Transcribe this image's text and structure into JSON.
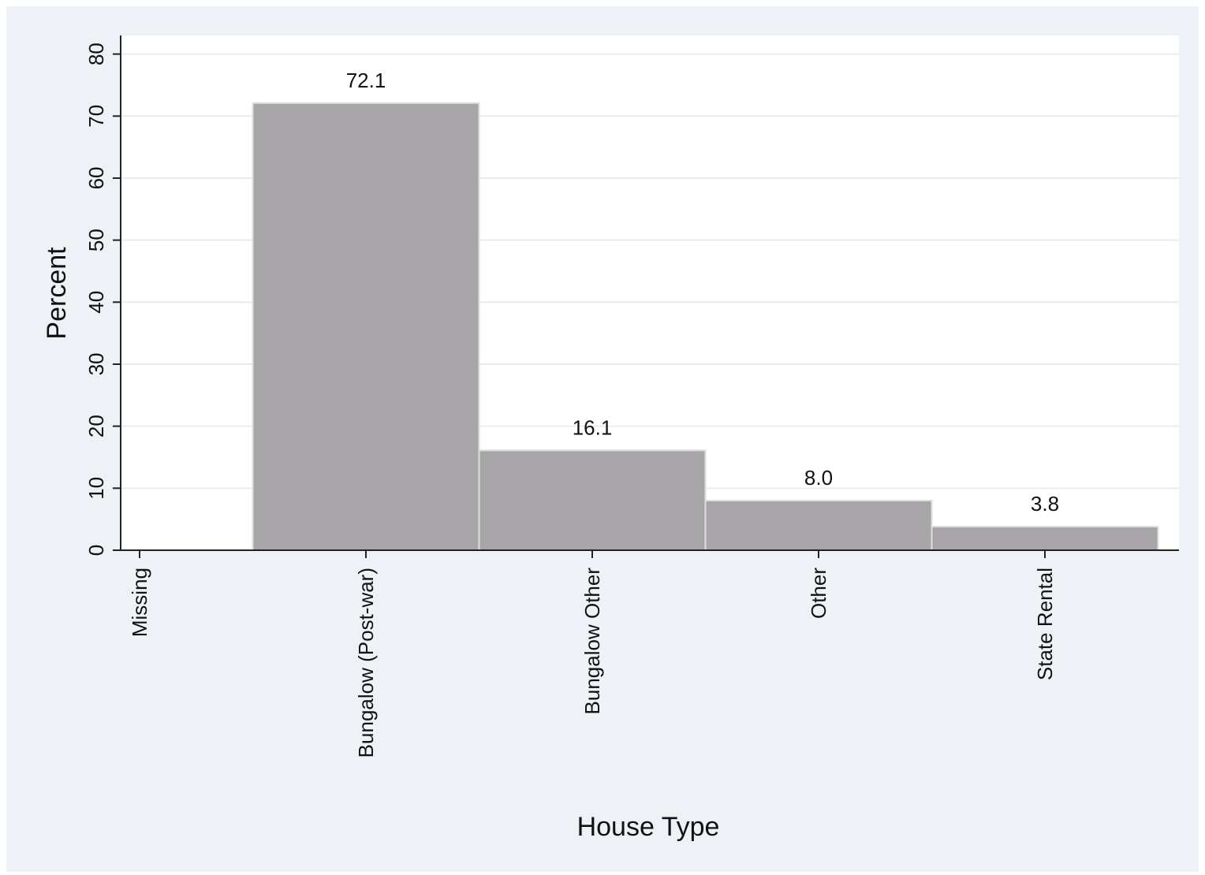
{
  "chart_data": {
    "type": "bar",
    "x_label": "House Type",
    "y_label": "Percent",
    "categories": [
      "Missing",
      "Bungalow (Post-war)",
      "Bungalow Other",
      "Other",
      "State Rental"
    ],
    "values": [
      null,
      72.1,
      16.1,
      8.0,
      3.8
    ],
    "value_labels": [
      null,
      "72.1",
      "16.1",
      "8.0",
      "3.8"
    ],
    "color": "#a7a5a8",
    "ylim": [
      0,
      83
    ],
    "yticks": [
      0,
      10,
      20,
      30,
      40,
      50,
      60,
      70,
      80
    ],
    "grid": true
  }
}
